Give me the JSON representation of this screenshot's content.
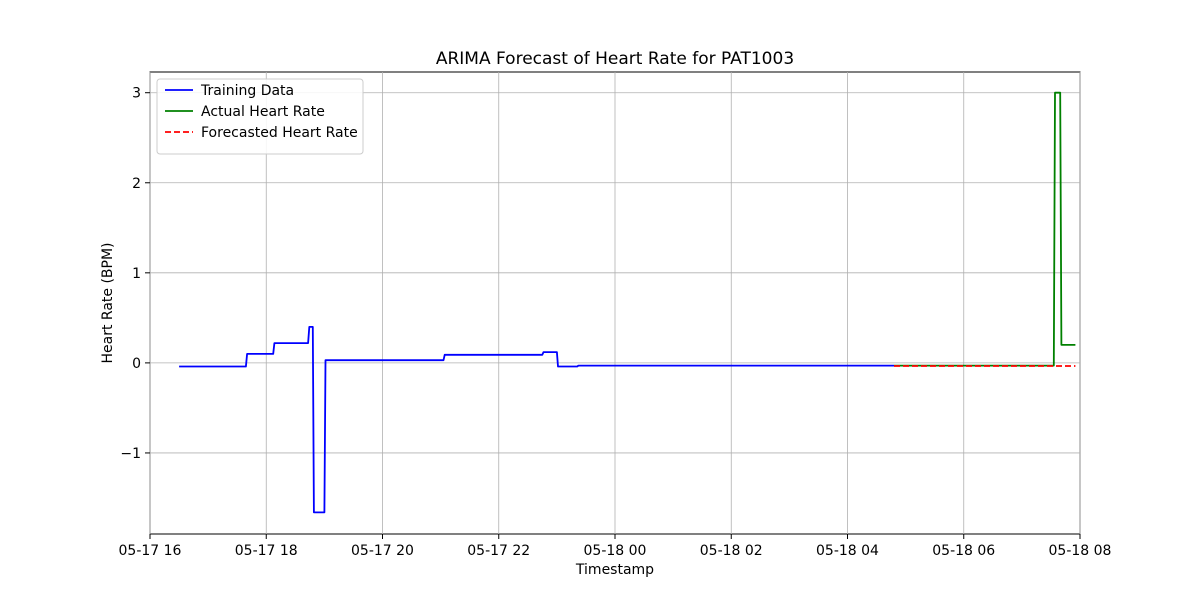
{
  "chart_data": {
    "type": "line",
    "title": "ARIMA Forecast of Heart Rate for PAT1003",
    "xlabel": "Timestamp",
    "ylabel": "Heart Rate (BPM)",
    "x_unit": "hours from 05-17 16:00",
    "xlim": [
      16.0,
      32.0
    ],
    "ylim": [
      -1.9,
      3.23
    ],
    "grid": true,
    "legend_position": "upper-left",
    "x_ticks": [
      {
        "value": 16,
        "label": "05-17 16"
      },
      {
        "value": 18,
        "label": "05-17 18"
      },
      {
        "value": 20,
        "label": "05-17 20"
      },
      {
        "value": 22,
        "label": "05-17 22"
      },
      {
        "value": 24,
        "label": "05-18 00"
      },
      {
        "value": 26,
        "label": "05-18 02"
      },
      {
        "value": 28,
        "label": "05-18 04"
      },
      {
        "value": 30,
        "label": "05-18 06"
      },
      {
        "value": 32,
        "label": "05-18 08"
      }
    ],
    "y_ticks": [
      {
        "value": -1,
        "label": "−1"
      },
      {
        "value": 0,
        "label": "0"
      },
      {
        "value": 1,
        "label": "1"
      },
      {
        "value": 2,
        "label": "2"
      },
      {
        "value": 3,
        "label": "3"
      }
    ],
    "series": [
      {
        "name": "Training Data",
        "color": "#0000ff",
        "style": "solid",
        "points": [
          [
            16.5,
            -0.04
          ],
          [
            17.65,
            -0.04
          ],
          [
            17.67,
            0.1
          ],
          [
            18.12,
            0.1
          ],
          [
            18.14,
            0.22
          ],
          [
            18.72,
            0.22
          ],
          [
            18.74,
            0.4
          ],
          [
            18.8,
            0.4
          ],
          [
            18.82,
            -1.66
          ],
          [
            19.0,
            -1.66
          ],
          [
            19.02,
            0.03
          ],
          [
            21.05,
            0.03
          ],
          [
            21.07,
            0.09
          ],
          [
            22.75,
            0.09
          ],
          [
            22.77,
            0.12
          ],
          [
            23.0,
            0.12
          ],
          [
            23.02,
            -0.04
          ],
          [
            23.35,
            -0.04
          ],
          [
            23.37,
            -0.03
          ],
          [
            28.8,
            -0.03
          ]
        ]
      },
      {
        "name": "Actual Heart Rate",
        "color": "#008000",
        "style": "solid",
        "points": [
          [
            28.8,
            -0.03
          ],
          [
            31.55,
            -0.03
          ],
          [
            31.57,
            3.0
          ],
          [
            31.66,
            3.0
          ],
          [
            31.68,
            0.2
          ],
          [
            31.92,
            0.2
          ]
        ]
      },
      {
        "name": "Forecasted Heart Rate",
        "color": "#ff0000",
        "style": "dashed",
        "points": [
          [
            28.8,
            -0.035
          ],
          [
            31.92,
            -0.035
          ]
        ]
      }
    ]
  }
}
